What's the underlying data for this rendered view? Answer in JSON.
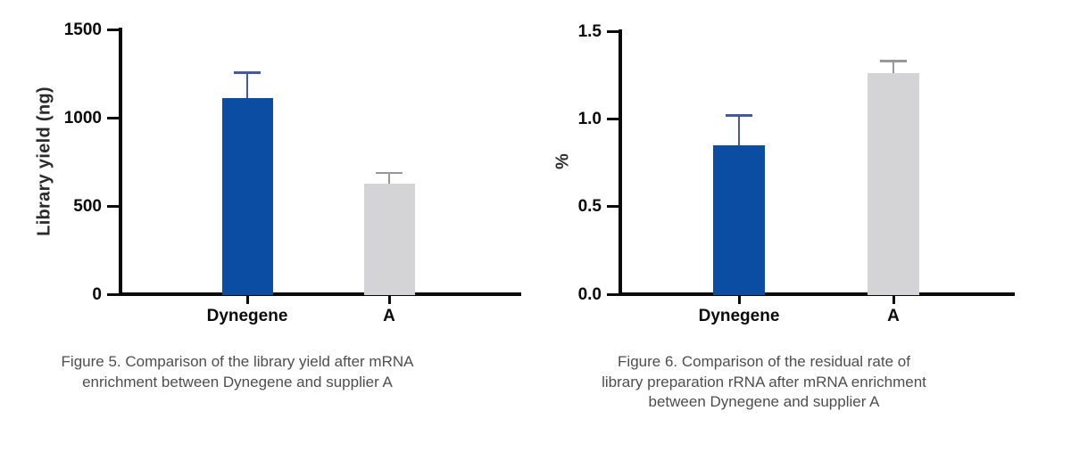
{
  "figure": {
    "background": "#ffffff",
    "axis_color": "#0a0a0a",
    "caption_color": "#4e4e50"
  },
  "chart_data": [
    {
      "type": "bar",
      "title": "Figure 5. Comparison of the library yield after mRNA enrichment between Dynegene and supplier A",
      "caption_lines": [
        "Figure 5. Comparison of the library yield after mRNA",
        "enrichment between Dynegene and supplier A"
      ],
      "ylabel": "Library yield (ng)",
      "xlabel": "",
      "categories": [
        "Dynegene",
        "A"
      ],
      "values": [
        1110,
        625
      ],
      "error_plus": [
        145,
        62
      ],
      "yticks": [
        0,
        500,
        1000,
        1500
      ],
      "ytick_labels": [
        "0",
        "500",
        "1000",
        "1500"
      ],
      "ylim": [
        0,
        1500
      ],
      "grid": false,
      "legend": "none",
      "bar_colors": [
        "#0b4da2",
        "#d4d4d6"
      ],
      "error_colors": [
        "#45599e",
        "#98989a"
      ]
    },
    {
      "type": "bar",
      "title": "Figure 6. Comparison of the residual rate of library preparation rRNA after mRNA enrichment between Dynegene and supplier A",
      "caption_lines": [
        "Figure 6. Comparison of the residual rate of",
        "library preparation rRNA after mRNA enrichment",
        "between Dynegene and supplier A"
      ],
      "ylabel": "%",
      "xlabel": "",
      "categories": [
        "Dynegene",
        "A"
      ],
      "values": [
        0.85,
        1.26
      ],
      "error_plus": [
        0.17,
        0.07
      ],
      "yticks": [
        0,
        0.5,
        1.0,
        1.5
      ],
      "ytick_labels": [
        "0.0",
        "0.5",
        "1.0",
        "1.5"
      ],
      "ylim": [
        0,
        1.5
      ],
      "grid": false,
      "legend": "none",
      "bar_colors": [
        "#0b4da2",
        "#d4d4d6"
      ],
      "error_colors": [
        "#45599e",
        "#98989a"
      ]
    }
  ]
}
